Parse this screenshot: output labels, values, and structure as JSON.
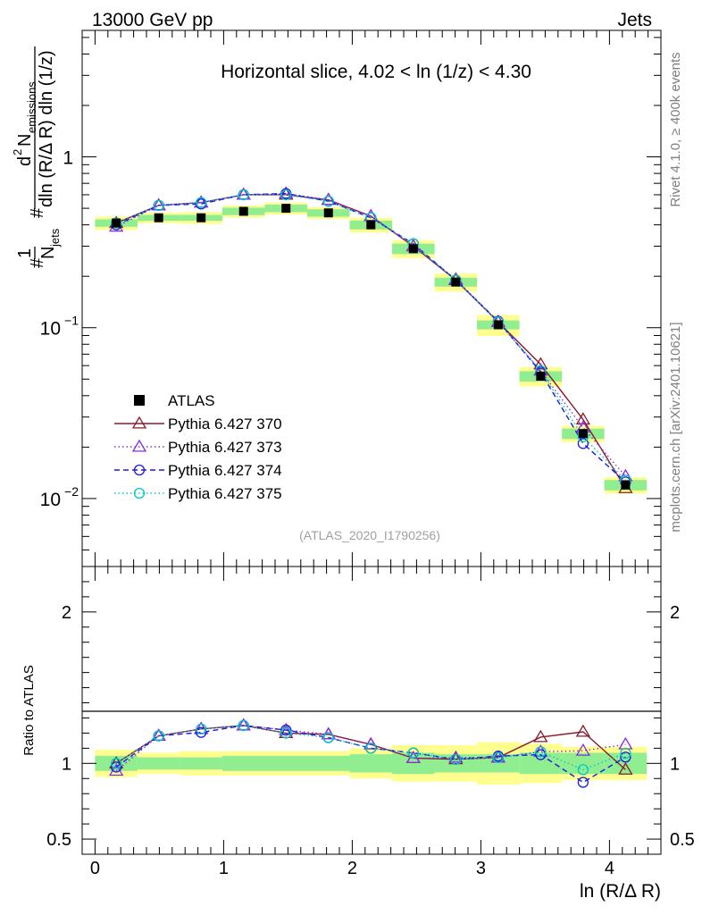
{
  "header": {
    "left": "13000 GeV pp",
    "right": "Jets",
    "slice_title": "Horizontal slice, 4.02 < ln (1/z) < 4.30",
    "watermark": "(ATLAS_2020_I1790256)",
    "side_top": "Rivet 4.1.0, ≥ 400k events",
    "side_bottom": "mcplots.cern.ch [arXiv:2401.10621]"
  },
  "axes": {
    "ylabel_main": "1/N_jets d²N_emissions / dln(R/ΔR) dln(1/z)",
    "ylabel_main_parts": {
      "one": "1",
      "hash1": "#",
      "n": "N",
      "jets": "jets",
      "hash2": "#",
      "d2": "d",
      "d2exp": "2",
      "nem": "N",
      "emissions": "emissions",
      "den": "dln (R/Δ R) dln (1/z)"
    },
    "ylabel_ratio": "Ratio to ATLAS",
    "xlabel": "ln (R/Δ R)",
    "main_yticks": [
      {
        "value": 1,
        "label": "1"
      },
      {
        "value": 0.1,
        "label": "10",
        "exp": "−1"
      },
      {
        "value": 0.01,
        "label": "10",
        "exp": "−2"
      }
    ],
    "ratio_yticks": [
      {
        "value": 2,
        "label": "2"
      },
      {
        "value": 1,
        "label": "1"
      },
      {
        "value": 0.5,
        "label": "0.5"
      }
    ],
    "xticks": [
      {
        "value": 0,
        "label": "0"
      },
      {
        "value": 1,
        "label": "1"
      },
      {
        "value": 2,
        "label": "2"
      },
      {
        "value": 3,
        "label": "3"
      },
      {
        "value": 4,
        "label": "4"
      }
    ]
  },
  "legend": [
    {
      "key": "atlas",
      "label": "ATLAS"
    },
    {
      "key": "p370",
      "label": "Pythia 6.427 370"
    },
    {
      "key": "p373",
      "label": "Pythia 6.427 373"
    },
    {
      "key": "p374",
      "label": "Pythia 6.427 374"
    },
    {
      "key": "p375",
      "label": "Pythia 6.427 375"
    }
  ],
  "chart_data": {
    "type": "line",
    "xlim": [
      -0.1,
      4.4
    ],
    "ylim_main": [
      0.004,
      5.5
    ],
    "ylim_ratio": [
      0.4,
      2.3
    ],
    "yscale_main": "log",
    "x": [
      0.165,
      0.495,
      0.825,
      1.155,
      1.485,
      1.815,
      2.145,
      2.475,
      2.805,
      3.135,
      3.465,
      3.795,
      4.125
    ],
    "bin_edges": [
      0.0,
      0.33,
      0.66,
      0.99,
      1.32,
      1.65,
      1.98,
      2.31,
      2.64,
      2.97,
      3.3,
      3.63,
      3.96,
      4.29
    ],
    "atlas": [
      0.41,
      0.44,
      0.44,
      0.48,
      0.5,
      0.47,
      0.4,
      0.29,
      0.185,
      0.104,
      0.052,
      0.024,
      0.012
    ],
    "band_inner": [
      0.05,
      0.04,
      0.04,
      0.05,
      0.05,
      0.05,
      0.06,
      0.07,
      0.06,
      0.06,
      0.07,
      0.07,
      0.07
    ],
    "band_outer": [
      0.09,
      0.07,
      0.08,
      0.08,
      0.08,
      0.08,
      0.1,
      0.12,
      0.12,
      0.14,
      0.13,
      0.11,
      0.11
    ],
    "series": [
      {
        "key": "p370",
        "name": "Pythia 6.427 370",
        "color": "#8b1a2b",
        "dash": "",
        "marker": "triangle",
        "values": [
          0.41,
          0.52,
          0.54,
          0.6,
          0.6,
          0.56,
          0.45,
          0.3,
          0.19,
          0.108,
          0.061,
          0.029,
          0.0115
        ]
      },
      {
        "key": "p373",
        "name": "Pythia 6.427 373",
        "color": "#8a2be2",
        "dash": "1.5,3",
        "marker": "triangle",
        "values": [
          0.39,
          0.52,
          0.54,
          0.6,
          0.61,
          0.56,
          0.45,
          0.3,
          0.192,
          0.108,
          0.056,
          0.026,
          0.0135
        ]
      },
      {
        "key": "p374",
        "name": "Pythia 6.427 374",
        "color": "#1a1ae6",
        "dash": "6,4",
        "marker": "circle",
        "values": [
          0.4,
          0.52,
          0.53,
          0.6,
          0.61,
          0.55,
          0.44,
          0.31,
          0.19,
          0.109,
          0.055,
          0.021,
          0.0125
        ]
      },
      {
        "key": "p375",
        "name": "Pythia 6.427 375",
        "color": "#00c8c8",
        "dash": "1.5,3",
        "marker": "circle",
        "values": [
          0.41,
          0.52,
          0.54,
          0.6,
          0.6,
          0.55,
          0.44,
          0.31,
          0.19,
          0.108,
          0.056,
          0.023,
          0.0128
        ]
      }
    ]
  },
  "colors": {
    "band_inner": "#90ee90",
    "band_outer": "#ffff90",
    "atlas": "#000000"
  }
}
